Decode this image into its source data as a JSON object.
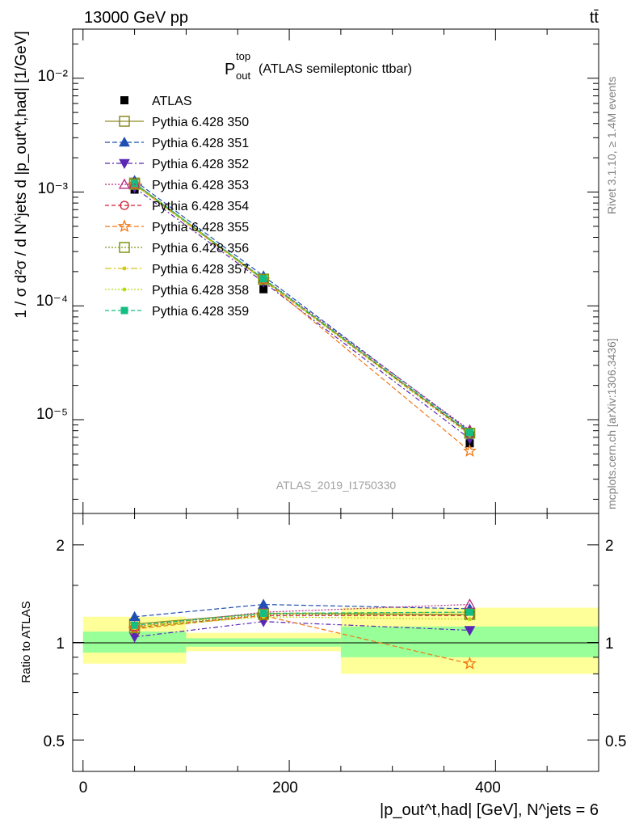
{
  "header": {
    "energy_label": "13000 GeV pp",
    "process_label": "tt̄"
  },
  "main_panel": {
    "title_symbol": "P",
    "title_sup": "top",
    "title_sub": "out",
    "title_text": "(ATLAS semileptonic ttbar)",
    "ylabel": "1 / σ d²σ / d N^jets d |p_out^t,had| [1/GeV]",
    "ytick_labels": [
      "10⁻⁵",
      "10⁻⁴",
      "10⁻³",
      "10⁻²"
    ],
    "analysis_id": "ATLAS_2019_I1750330"
  },
  "ratio_panel": {
    "ylabel": "Ratio to ATLAS",
    "ytick_labels": [
      "0.5",
      "1",
      "2"
    ]
  },
  "xaxis": {
    "tick_labels": [
      "0",
      "200",
      "400"
    ],
    "label": "|p_out^t,had| [GeV], N^jets = 6"
  },
  "side_labels": {
    "rivet": "Rivet 3.1.10, ≥ 1.4M events",
    "mcplots": "mcplots.cern.ch [arXiv:1306.3436]"
  },
  "colors": {
    "data": "#000000",
    "band_inner": "#99ff99",
    "band_outer": "#ffff99"
  },
  "chart_data": {
    "type": "line",
    "xlim": [
      -10,
      500
    ],
    "main_ylim_log": [
      1.5e-06,
      0.027
    ],
    "ratio_ylim_log": [
      0.4,
      2.5
    ],
    "ratio_ylog": true,
    "x_edges": [
      0,
      100,
      250,
      500
    ],
    "x_centers": [
      50,
      175,
      375
    ],
    "data": {
      "name": "ATLAS",
      "values": [
        0.00105,
        0.00014,
        6.2e-06
      ]
    },
    "data_band_inner": [
      [
        0.93,
        1.08
      ],
      [
        0.97,
        1.03
      ],
      [
        0.9,
        1.12
      ]
    ],
    "data_band_outer": [
      [
        0.86,
        1.2
      ],
      [
        0.94,
        1.07
      ],
      [
        0.8,
        1.28
      ]
    ],
    "series": [
      {
        "name": "Pythia 6.428 350",
        "color": "#8c8c24",
        "marker": "square-open",
        "dash": "",
        "values": [
          0.0012,
          0.000172,
          7.6e-06
        ],
        "ratio": [
          1.14,
          1.23,
          1.22
        ]
      },
      {
        "name": "Pythia 6.428 351",
        "color": "#1f4fb4",
        "marker": "triangle-up",
        "dash": "6,3",
        "values": [
          0.00126,
          0.000183,
          7.9e-06
        ],
        "ratio": [
          1.2,
          1.31,
          1.27
        ]
      },
      {
        "name": "Pythia 6.428 352",
        "color": "#5a26b4",
        "marker": "triangle-down",
        "dash": "6,3,2,3",
        "values": [
          0.00109,
          0.000162,
          6.8e-06
        ],
        "ratio": [
          1.04,
          1.16,
          1.09
        ]
      },
      {
        "name": "Pythia 6.428 353",
        "color": "#b4267e",
        "marker": "triangle-open",
        "dash": "2,2",
        "values": [
          0.00118,
          0.000174,
          8.1e-06
        ],
        "ratio": [
          1.12,
          1.24,
          1.31
        ]
      },
      {
        "name": "Pythia 6.428 354",
        "color": "#d21e32",
        "marker": "circle-open",
        "dash": "5,3",
        "values": [
          0.00117,
          0.00017,
          7.5e-06
        ],
        "ratio": [
          1.11,
          1.21,
          1.21
        ]
      },
      {
        "name": "Pythia 6.428 355",
        "color": "#f07814",
        "marker": "star-open",
        "dash": "6,3",
        "values": [
          0.00116,
          0.000169,
          5.3e-06
        ],
        "ratio": [
          1.1,
          1.21,
          0.86
        ]
      },
      {
        "name": "Pythia 6.428 356",
        "color": "#7d9614",
        "marker": "square-open",
        "dash": "2,2",
        "values": [
          0.00117,
          0.000171,
          7.6e-06
        ],
        "ratio": [
          1.11,
          1.22,
          1.22
        ]
      },
      {
        "name": "Pythia 6.428 357",
        "color": "#d2c814",
        "marker": "dot",
        "dash": "8,3,2,3",
        "values": [
          0.00118,
          0.000172,
          7.7e-06
        ],
        "ratio": [
          1.12,
          1.23,
          1.24
        ]
      },
      {
        "name": "Pythia 6.428 358",
        "color": "#b4dc14",
        "marker": "dot",
        "dash": "2,2",
        "values": [
          0.00116,
          0.000168,
          7.3e-06
        ],
        "ratio": [
          1.11,
          1.2,
          1.18
        ]
      },
      {
        "name": "Pythia 6.428 359",
        "color": "#14be82",
        "marker": "square-filled",
        "dash": "5,3",
        "values": [
          0.00119,
          0.000173,
          7.7e-06
        ],
        "ratio": [
          1.13,
          1.23,
          1.24
        ]
      }
    ]
  }
}
